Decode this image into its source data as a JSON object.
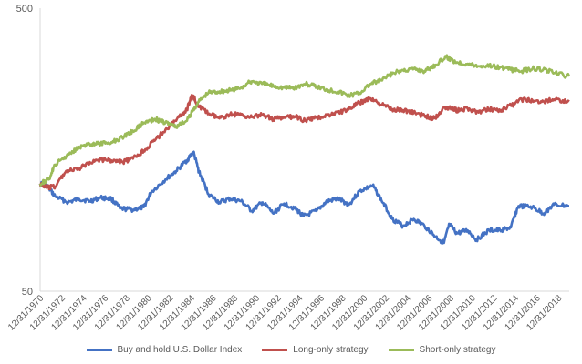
{
  "chart_data": {
    "type": "line",
    "y_scale": "log",
    "ylim": [
      50,
      500
    ],
    "y_tick_labels": [
      "500",
      "50"
    ],
    "x_tick_labels": [
      "12/31/1970",
      "12/31/1972",
      "12/31/1974",
      "12/31/1976",
      "12/31/1978",
      "12/31/1980",
      "12/31/1982",
      "12/31/1984",
      "12/31/1986",
      "12/31/1988",
      "12/31/1990",
      "12/31/1992",
      "12/31/1994",
      "12/31/1996",
      "12/31/1998",
      "12/31/2000",
      "12/31/2002",
      "12/31/2004",
      "12/31/2006",
      "12/31/2008",
      "12/31/2010",
      "12/31/2012",
      "12/31/2014",
      "12/31/2016",
      "12/31/2018"
    ],
    "xlim": [
      1970.9,
      2019.9
    ],
    "grid": false,
    "legend_position": "bottom",
    "series": [
      {
        "name": "Buy and hold U.S. Dollar Index",
        "color": "#4472C4",
        "points": [
          [
            1970.9,
            120
          ],
          [
            1971.5,
            118
          ],
          [
            1972.3,
            108
          ],
          [
            1973.5,
            103
          ],
          [
            1974.5,
            106
          ],
          [
            1975.5,
            104
          ],
          [
            1976.5,
            107
          ],
          [
            1977.5,
            106
          ],
          [
            1978.3,
            98
          ],
          [
            1979.5,
            97
          ],
          [
            1980.5,
            99
          ],
          [
            1981.2,
            112
          ],
          [
            1982.5,
            124
          ],
          [
            1983.5,
            133
          ],
          [
            1984.5,
            145
          ],
          [
            1985.1,
            155
          ],
          [
            1985.6,
            132
          ],
          [
            1986.5,
            110
          ],
          [
            1987.5,
            103
          ],
          [
            1988.5,
            106
          ],
          [
            1989.5,
            104
          ],
          [
            1990.5,
            96
          ],
          [
            1991.5,
            103
          ],
          [
            1992.5,
            94
          ],
          [
            1993.5,
            102
          ],
          [
            1994.5,
            98
          ],
          [
            1995.3,
            92
          ],
          [
            1996.5,
            96
          ],
          [
            1997.5,
            104
          ],
          [
            1998.5,
            106
          ],
          [
            1999.5,
            101
          ],
          [
            2000.5,
            113
          ],
          [
            2001.7,
            118
          ],
          [
            2002.5,
            105
          ],
          [
            2003.5,
            90
          ],
          [
            2004.5,
            85
          ],
          [
            2005.5,
            90
          ],
          [
            2006.5,
            85
          ],
          [
            2007.5,
            78
          ],
          [
            2008.3,
            74
          ],
          [
            2008.8,
            86
          ],
          [
            2009.5,
            80
          ],
          [
            2010.5,
            82
          ],
          [
            2011.3,
            76
          ],
          [
            2012.5,
            82
          ],
          [
            2013.5,
            82
          ],
          [
            2014.5,
            84
          ],
          [
            2015.2,
            100
          ],
          [
            2016.5,
            99
          ],
          [
            2017.5,
            94
          ],
          [
            2018.5,
            101
          ],
          [
            2019.9,
            100
          ]
        ]
      },
      {
        "name": "Long-only strategy",
        "color": "#C0504D",
        "points": [
          [
            1970.9,
            120
          ],
          [
            1971.5,
            116
          ],
          [
            1972.3,
            117
          ],
          [
            1973.3,
            133
          ],
          [
            1974.5,
            135
          ],
          [
            1975.5,
            143
          ],
          [
            1976.5,
            146
          ],
          [
            1977.5,
            145
          ],
          [
            1978.5,
            143
          ],
          [
            1979.5,
            147
          ],
          [
            1980.5,
            157
          ],
          [
            1981.5,
            170
          ],
          [
            1982.5,
            186
          ],
          [
            1983.5,
            200
          ],
          [
            1984.5,
            220
          ],
          [
            1985.0,
            246
          ],
          [
            1985.6,
            225
          ],
          [
            1986.5,
            212
          ],
          [
            1987.5,
            204
          ],
          [
            1988.5,
            211
          ],
          [
            1989.5,
            210
          ],
          [
            1990.5,
            206
          ],
          [
            1991.5,
            210
          ],
          [
            1992.5,
            203
          ],
          [
            1993.5,
            205
          ],
          [
            1994.5,
            207
          ],
          [
            1995.5,
            200
          ],
          [
            1996.5,
            205
          ],
          [
            1997.5,
            209
          ],
          [
            1998.5,
            214
          ],
          [
            1999.5,
            220
          ],
          [
            2000.5,
            232
          ],
          [
            2001.5,
            240
          ],
          [
            2002.5,
            228
          ],
          [
            2003.5,
            220
          ],
          [
            2004.5,
            218
          ],
          [
            2005.5,
            214
          ],
          [
            2006.5,
            208
          ],
          [
            2007.5,
            204
          ],
          [
            2008.3,
            224
          ],
          [
            2009.0,
            222
          ],
          [
            2009.5,
            218
          ],
          [
            2010.5,
            221
          ],
          [
            2011.5,
            214
          ],
          [
            2012.5,
            220
          ],
          [
            2013.5,
            218
          ],
          [
            2014.5,
            226
          ],
          [
            2015.5,
            238
          ],
          [
            2016.5,
            236
          ],
          [
            2017.5,
            234
          ],
          [
            2018.5,
            238
          ],
          [
            2019.9,
            234
          ]
        ]
      },
      {
        "name": "Short-only strategy",
        "color": "#9BBB59",
        "points": [
          [
            1970.9,
            120
          ],
          [
            1971.7,
            124
          ],
          [
            1972.3,
            140
          ],
          [
            1973.5,
            152
          ],
          [
            1974.5,
            162
          ],
          [
            1975.5,
            165
          ],
          [
            1976.5,
            166
          ],
          [
            1977.5,
            168
          ],
          [
            1978.5,
            175
          ],
          [
            1979.5,
            184
          ],
          [
            1980.5,
            197
          ],
          [
            1981.5,
            203
          ],
          [
            1982.5,
            197
          ],
          [
            1983.5,
            191
          ],
          [
            1984.5,
            200
          ],
          [
            1985.5,
            232
          ],
          [
            1986.5,
            252
          ],
          [
            1987.5,
            254
          ],
          [
            1988.5,
            256
          ],
          [
            1989.5,
            262
          ],
          [
            1990.5,
            276
          ],
          [
            1991.5,
            270
          ],
          [
            1992.5,
            266
          ],
          [
            1993.5,
            262
          ],
          [
            1994.5,
            262
          ],
          [
            1995.5,
            270
          ],
          [
            1996.5,
            264
          ],
          [
            1997.5,
            258
          ],
          [
            1998.5,
            254
          ],
          [
            1999.5,
            246
          ],
          [
            2000.5,
            251
          ],
          [
            2001.5,
            270
          ],
          [
            2002.5,
            278
          ],
          [
            2003.5,
            293
          ],
          [
            2004.5,
            302
          ],
          [
            2005.5,
            305
          ],
          [
            2006.5,
            300
          ],
          [
            2007.5,
            315
          ],
          [
            2008.5,
            336
          ],
          [
            2009.5,
            322
          ],
          [
            2010.5,
            318
          ],
          [
            2011.5,
            312
          ],
          [
            2012.5,
            314
          ],
          [
            2013.5,
            309
          ],
          [
            2014.5,
            303
          ],
          [
            2015.5,
            300
          ],
          [
            2016.5,
            306
          ],
          [
            2017.5,
            304
          ],
          [
            2018.5,
            295
          ],
          [
            2019.9,
            287
          ]
        ]
      }
    ]
  }
}
